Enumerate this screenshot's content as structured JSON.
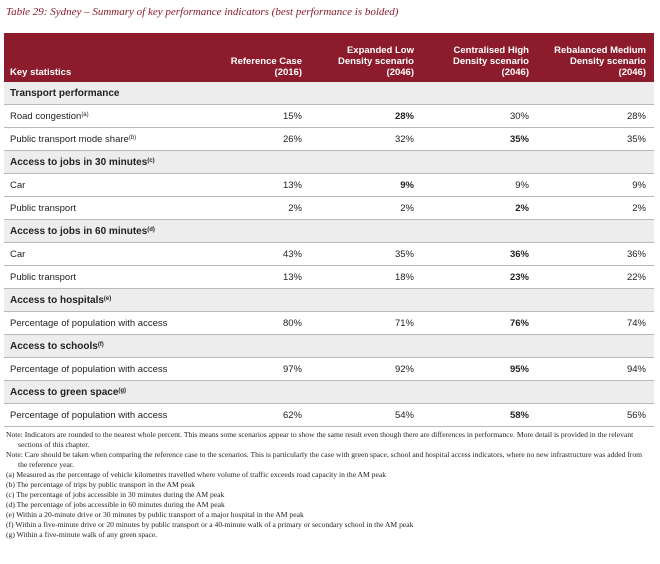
{
  "title": "Table 29: Sydney – Summary of key performance indicators (best performance is bolded)",
  "columns": [
    "Key statistics",
    "Reference Case (2016)",
    "Expanded Low Density scenario (2046)",
    "Centralised High Density scenario (2046)",
    "Rebalanced Medium Density scenario (2046)"
  ],
  "sections": [
    {
      "title": "Transport performance",
      "rows": [
        {
          "label": "Road congestion",
          "note": "(a)",
          "cells": [
            "15%",
            "28%",
            "30%",
            "28%"
          ],
          "best": 1
        },
        {
          "label": "Public transport mode share",
          "note": "(b)",
          "cells": [
            "26%",
            "32%",
            "35%",
            "35%"
          ],
          "best": 2
        }
      ]
    },
    {
      "title": "Access to jobs in 30 minutes",
      "note": "(c)",
      "rows": [
        {
          "label": "Car",
          "cells": [
            "13%",
            "9%",
            "9%",
            "9%"
          ],
          "best": 1
        },
        {
          "label": "Public transport",
          "cells": [
            "2%",
            "2%",
            "2%",
            "2%"
          ],
          "best": 2
        }
      ]
    },
    {
      "title": "Access to jobs in 60 minutes",
      "note": "(d)",
      "rows": [
        {
          "label": "Car",
          "cells": [
            "43%",
            "35%",
            "36%",
            "36%"
          ],
          "best": 2
        },
        {
          "label": "Public transport",
          "cells": [
            "13%",
            "18%",
            "23%",
            "22%"
          ],
          "best": 2
        }
      ]
    },
    {
      "title": "Access to hospitals",
      "note": "(e)",
      "rows": [
        {
          "label": "Percentage of population with access",
          "cells": [
            "80%",
            "71%",
            "76%",
            "74%"
          ],
          "best": 2
        }
      ]
    },
    {
      "title": "Access to schools",
      "note": "(f)",
      "rows": [
        {
          "label": "Percentage of population with access",
          "cells": [
            "97%",
            "92%",
            "95%",
            "94%"
          ],
          "best": 2
        }
      ]
    },
    {
      "title": "Access to green space",
      "note": "(g)",
      "rows": [
        {
          "label": "Percentage of population with access",
          "cells": [
            "62%",
            "54%",
            "58%",
            "56%"
          ],
          "best": 2
        }
      ]
    }
  ],
  "notes": [
    "Note: Indicators are rounded to the nearest whole percent. This means some scenarios appear to show the same result even though there are differences in performance. More detail is provided in the relevant sections of this chapter.",
    "Note: Care should be taken when comparing the reference case to the scenarios. This is particularly the case with green space, school and hospital access indicators, where no new infrastructure was added from the reference year.",
    "(a) Measured as the percentage of vehicle kilometres travelled where volume of traffic exceeds road capacity in the AM peak",
    "(b) The percentage of trips by public transport in the AM peak",
    "(c) The percentage of jobs accessible in 30 minutes during the AM peak",
    "(d) The percentage of jobs accessible in 60 minutes during the AM peak",
    "(e) Within a 20-minute drive or 30 minutes by public transport of a major hospital in the AM peak",
    "(f) Within a five-minute drive or 20 minutes by public transport or a 40-minute walk of a primary or secondary school in the AM peak",
    "(g) Within a five-minute walk of any green space."
  ]
}
